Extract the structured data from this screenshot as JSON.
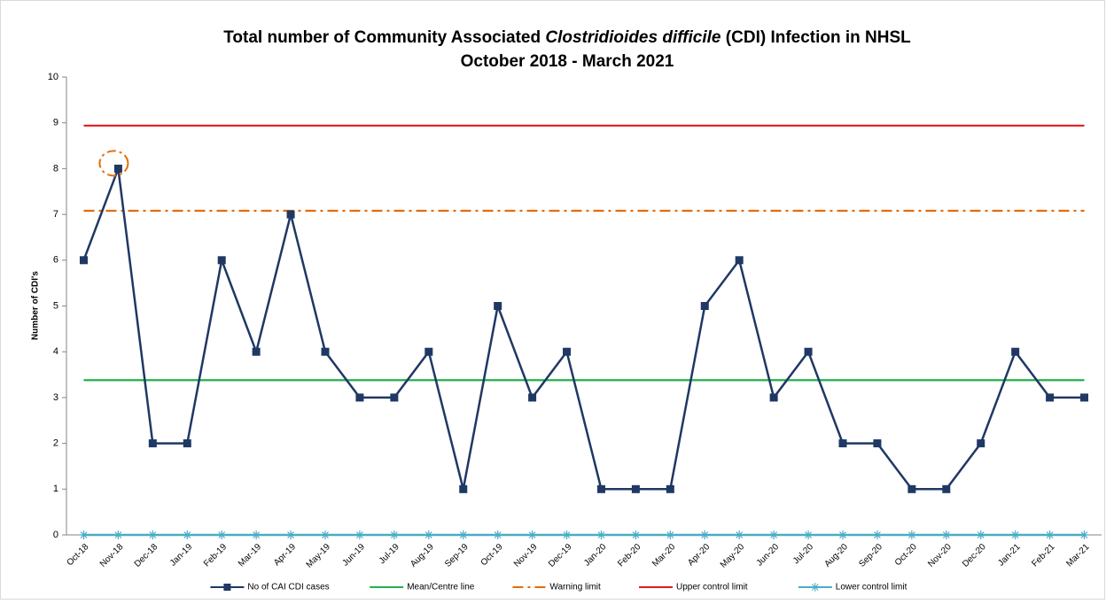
{
  "chart_data": {
    "type": "line",
    "title": [
      "Total number of Community Associated",
      "Clostridioides difficile",
      "(CDI) Infection in NHSL"
    ],
    "subtitle": "October 2018 - March 2021",
    "y_label": "Number of CDI's",
    "categories": [
      "Oct-18",
      "Nov-18",
      "Dec-18",
      "Jan-19",
      "Feb-19",
      "Mar-19",
      "Apr-19",
      "May-19",
      "Jun-19",
      "Jul-19",
      "Aug-19",
      "Sep-19",
      "Oct-19",
      "Nov-19",
      "Dec-19",
      "Jan-20",
      "Feb-20",
      "Mar-20",
      "Apr-20",
      "May-20",
      "Jun-20",
      "Jul-20",
      "Aug-20",
      "Sep-20",
      "Oct-20",
      "Nov-20",
      "Dec-20",
      "Jan-21",
      "Feb-21",
      "Mar-21"
    ],
    "series": [
      {
        "name": "No of CAI CDI cases",
        "color": "#1f3864",
        "style": "solid",
        "marker": "square",
        "values": [
          6,
          8,
          2,
          2,
          6,
          4,
          7,
          4,
          3,
          3,
          4,
          1,
          5,
          3,
          4,
          1,
          1,
          1,
          5,
          6,
          3,
          4,
          2,
          2,
          1,
          1,
          2,
          4,
          3,
          3
        ]
      },
      {
        "name": "Mean/Centre line",
        "color": "#22b14c",
        "style": "solid",
        "marker": "none",
        "values": [
          3.38,
          3.38,
          3.38,
          3.38,
          3.38,
          3.38,
          3.38,
          3.38,
          3.38,
          3.38,
          3.38,
          3.38,
          3.38,
          3.38,
          3.38,
          3.38,
          3.38,
          3.38,
          3.38,
          3.38,
          3.38,
          3.38,
          3.38,
          3.38,
          3.38,
          3.38,
          3.38,
          3.38,
          3.38,
          3.38
        ]
      },
      {
        "name": "Warning limit",
        "color": "#e46c0a",
        "style": "dash-dot",
        "marker": "none",
        "values": [
          7.08,
          7.08,
          7.08,
          7.08,
          7.08,
          7.08,
          7.08,
          7.08,
          7.08,
          7.08,
          7.08,
          7.08,
          7.08,
          7.08,
          7.08,
          7.08,
          7.08,
          7.08,
          7.08,
          7.08,
          7.08,
          7.08,
          7.08,
          7.08,
          7.08,
          7.08,
          7.08,
          7.08,
          7.08,
          7.08
        ]
      },
      {
        "name": "Upper control limit",
        "color": "#e31a1c",
        "style": "solid",
        "marker": "none",
        "values": [
          8.94,
          8.94,
          8.94,
          8.94,
          8.94,
          8.94,
          8.94,
          8.94,
          8.94,
          8.94,
          8.94,
          8.94,
          8.94,
          8.94,
          8.94,
          8.94,
          8.94,
          8.94,
          8.94,
          8.94,
          8.94,
          8.94,
          8.94,
          8.94,
          8.94,
          8.94,
          8.94,
          8.94,
          8.94,
          8.94
        ]
      },
      {
        "name": "Lower control limit",
        "color": "#4bacc6",
        "style": "solid",
        "marker": "asterisk",
        "values": [
          0,
          0,
          0,
          0,
          0,
          0,
          0,
          0,
          0,
          0,
          0,
          0,
          0,
          0,
          0,
          0,
          0,
          0,
          0,
          0,
          0,
          0,
          0,
          0,
          0,
          0,
          0,
          0,
          0,
          0
        ]
      }
    ],
    "ylim": [
      0,
      10
    ],
    "yticks": [
      0,
      1,
      2,
      3,
      4,
      5,
      6,
      7,
      8,
      9,
      10
    ],
    "grid": false,
    "legend": "bottom"
  }
}
